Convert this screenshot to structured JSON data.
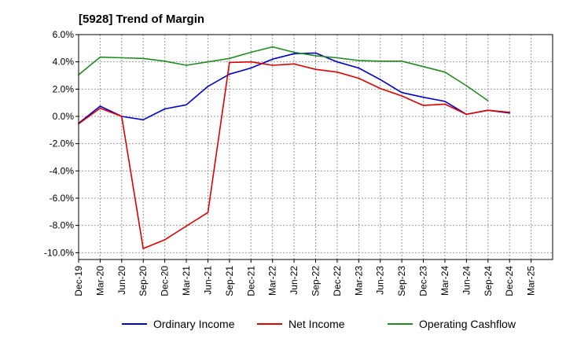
{
  "chart_data": {
    "type": "line",
    "title": "[5928]  Trend of Margin",
    "xlabel": "",
    "ylabel": "",
    "x": [
      "Dec-19",
      "Mar-20",
      "Jun-20",
      "Sep-20",
      "Dec-20",
      "Mar-21",
      "Jun-21",
      "Sep-21",
      "Dec-21",
      "Mar-22",
      "Jun-22",
      "Sep-22",
      "Dec-22",
      "Mar-23",
      "Jun-23",
      "Sep-23",
      "Dec-23",
      "Mar-24",
      "Jun-24",
      "Sep-24",
      "Dec-24",
      "Mar-25"
    ],
    "ylim": [
      -10.5,
      6.0
    ],
    "yticks": [
      6.0,
      4.0,
      2.0,
      0.0,
      -2.0,
      -4.0,
      -6.0,
      -8.0,
      -10.0
    ],
    "ytick_labels": [
      "6.0%",
      "4.0%",
      "2.0%",
      "0.0%",
      "-2.0%",
      "-4.0%",
      "-6.0%",
      "-8.0%",
      "-10.0%"
    ],
    "grid": true,
    "legend_position": "bottom",
    "series": [
      {
        "name": "Ordinary Income",
        "color": "#0000cc",
        "values": [
          -0.5,
          0.75,
          0.0,
          -0.25,
          0.55,
          0.85,
          2.2,
          3.1,
          3.55,
          4.2,
          4.6,
          4.65,
          4.0,
          3.55,
          2.7,
          1.75,
          1.4,
          1.1,
          0.15,
          0.45,
          0.25,
          null
        ]
      },
      {
        "name": "Net Income",
        "color": "#dd0000",
        "values": [
          -0.55,
          0.6,
          0.0,
          -9.7,
          -9.05,
          -8.05,
          -7.05,
          3.95,
          4.0,
          3.75,
          3.85,
          3.45,
          3.25,
          2.8,
          2.05,
          1.5,
          0.8,
          0.9,
          0.15,
          0.45,
          0.3,
          null
        ]
      },
      {
        "name": "Operating Cashflow",
        "color": "#228b22",
        "values": [
          3.05,
          4.35,
          4.3,
          4.25,
          4.05,
          3.75,
          4.0,
          4.25,
          4.7,
          5.1,
          4.7,
          4.45,
          4.3,
          4.1,
          4.05,
          4.05,
          3.65,
          3.25,
          2.25,
          1.15,
          null,
          null
        ]
      }
    ]
  }
}
